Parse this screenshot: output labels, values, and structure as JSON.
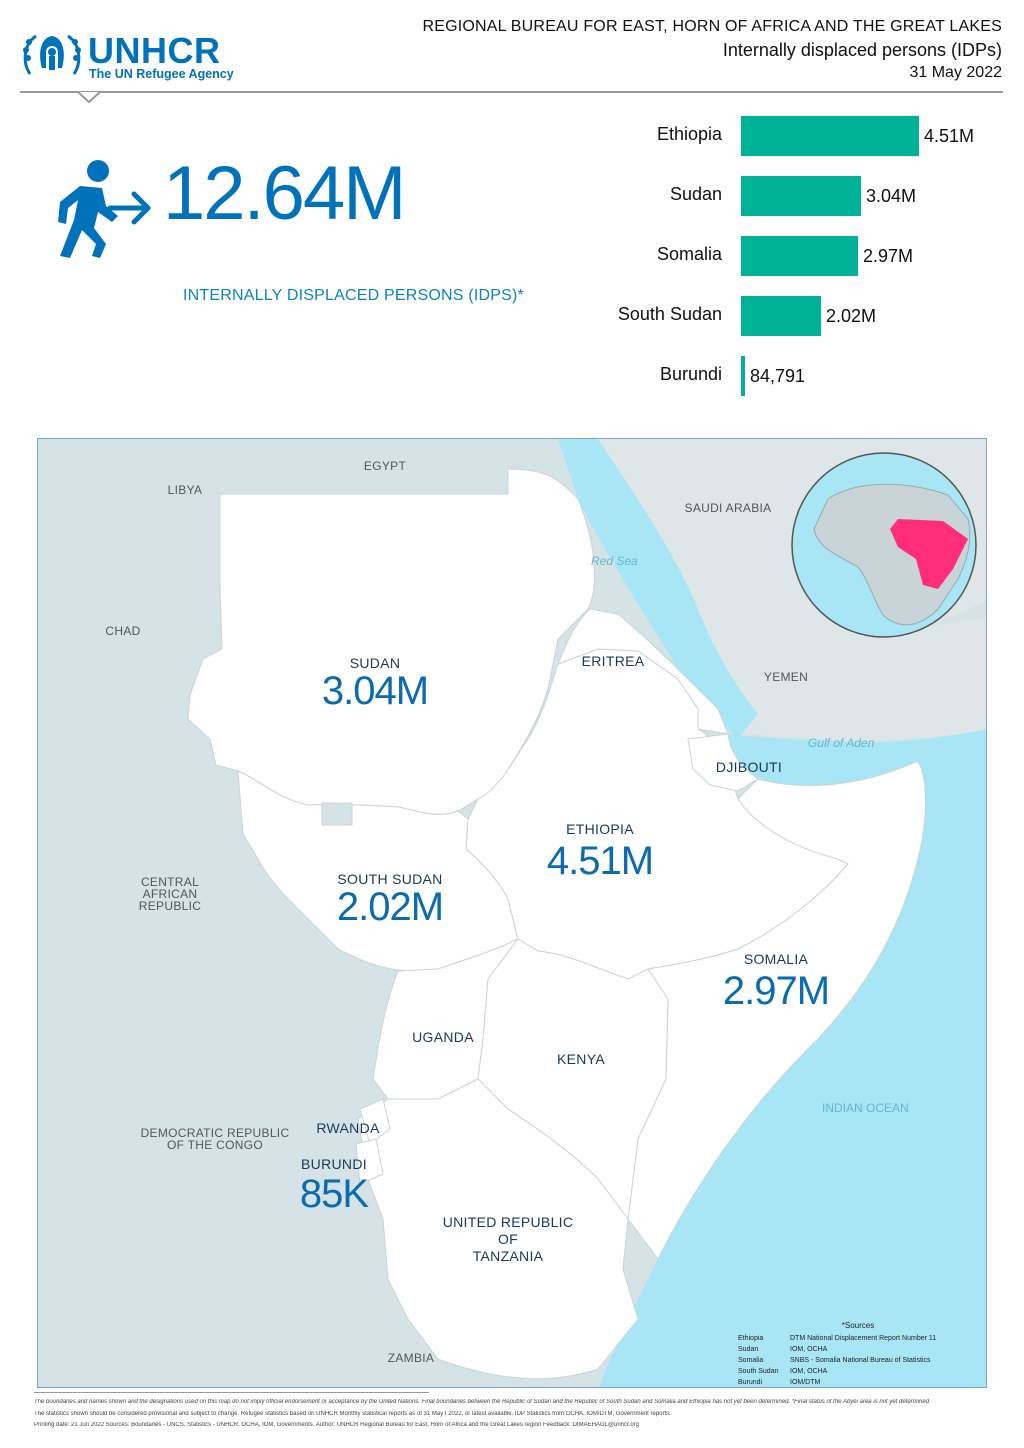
{
  "header": {
    "logo_word": "UNHCR",
    "logo_sub": "The UN Refugee Agency",
    "line1": "REGIONAL BUREAU FOR EAST, HORN OF AFRICA AND THE GREAT LAKES",
    "line2": "Internally displaced persons (IDPs)",
    "line3": "31 May 2022"
  },
  "kpi": {
    "icon": "person-walking-arrow-icon",
    "value": "12.64M",
    "label": "INTERNALLY DISPLACED PERSONS (IDPS)*",
    "color": "#0072bc"
  },
  "chart_data": {
    "type": "bar",
    "orientation": "horizontal",
    "categories": [
      "Ethiopia",
      "Sudan",
      "Somalia",
      "South Sudan",
      "Burundi"
    ],
    "values": [
      4510000,
      3040000,
      2970000,
      2020000,
      84791
    ],
    "value_labels": [
      "4.51M",
      "3.04M",
      "2.97M",
      "2.02M",
      "84,791"
    ],
    "bar_color": "#00b398"
  },
  "map": {
    "countries": {
      "sudan": {
        "name": "SUDAN",
        "value": "3.04M"
      },
      "south_sudan": {
        "name": "SOUTH SUDAN",
        "value": "2.02M"
      },
      "ethiopia": {
        "name": "ETHIOPIA",
        "value": "4.51M"
      },
      "somalia": {
        "name": "SOMALIA",
        "value": "2.97M"
      },
      "burundi": {
        "name": "BURUNDI",
        "value": "85K"
      },
      "eritrea": {
        "name": "ERITREA"
      },
      "djibouti": {
        "name": "DJIBOUTI"
      },
      "uganda": {
        "name": "UGANDA"
      },
      "kenya": {
        "name": "KENYA"
      },
      "rwanda": {
        "name": "RWANDA"
      },
      "tanzania": {
        "line1": "UNITED REPUBLIC",
        "line2": "OF",
        "line3": "TANZANIA"
      }
    },
    "neighbours": {
      "egypt": "EGYPT",
      "libya": "LIBYA",
      "chad": "CHAD",
      "saudi_arabia": "SAUDI ARABIA",
      "yemen": "YEMEN",
      "car_1": "CENTRAL",
      "car_2": "AFRICAN",
      "car_3": "REPUBLIC",
      "drc_1": "DEMOCRATIC REPUBLIC",
      "drc_2": "OF THE CONGO",
      "zambia": "ZAMBIA"
    },
    "seas": {
      "red_sea": "Red Sea",
      "gulf_of_aden": "Gulf of Aden",
      "indian_ocean": "INDIAN OCEAN"
    },
    "colors": {
      "focus_land": "#ffffff",
      "other_land": "#d6e3e6",
      "water": "#a8e6f5",
      "highlight": "#ff2d7a"
    },
    "sources": {
      "title": "*Sources",
      "rows": [
        {
          "country": "Ethiopia",
          "source": "DTM National Displacement Report Number 11"
        },
        {
          "country": "Sudan",
          "source": "IOM, OCHA"
        },
        {
          "country": "Somalia",
          "source": "SNBS - Somalia National Bureau of Statistics"
        },
        {
          "country": "South Sudan",
          "source": "IOM, OCHA"
        },
        {
          "country": "Burundi",
          "source": "IOM/DTM"
        }
      ]
    }
  },
  "footer": {
    "line1": "The boundaries and names shown and the designations used on this map do not imply official endorsement or acceptance by the United Nations. Final boundaries between the Republic of Sudan and the Republic of South Sudan and Somalia and Ethiopia has not yet been determined. *Final status of the Abyei area is not yet determined.",
    "line2": "The statistics shown should be considered provisional and subject to change. Refugee statistics based on UNHCR Monthly statistical reports as of 31 May I 2022, or latest available. IDP Statistics from OCHA, IOM/DTM, Government reports.",
    "line3": "Printing date: 21 Jun 2022    Sources: Boundaries - UNCS, Statistics - UNHCR, OCHA, IOM, Governments.    Author: UNHCR Regional Bureau for East, Horn of Africa and the Great Lakes region    Feedback: DIMAEHAGL@unhcr.org"
  }
}
